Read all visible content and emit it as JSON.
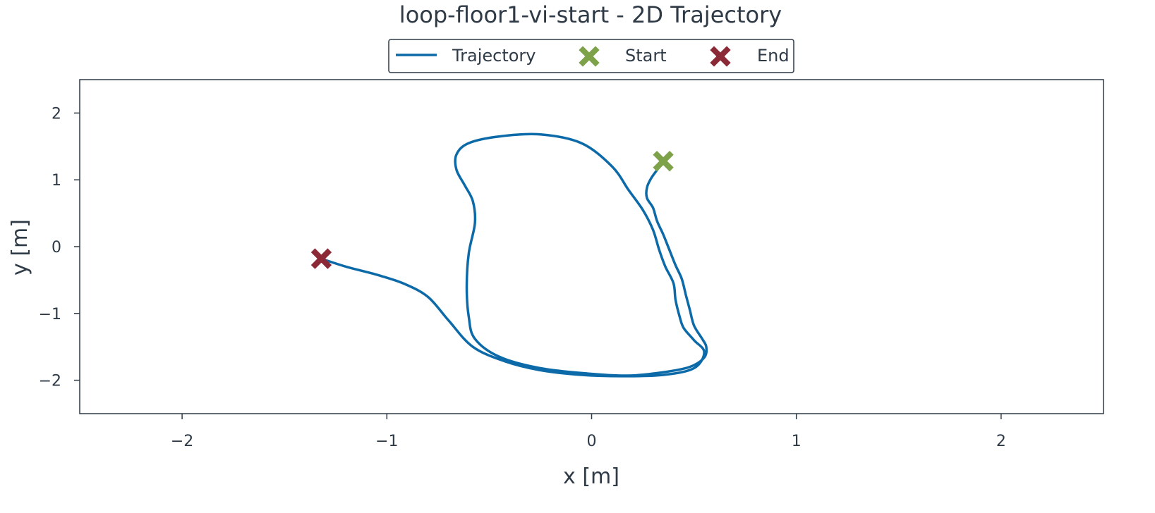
{
  "chart_data": {
    "type": "line",
    "title": "loop-floor1-vi-start - 2D Trajectory",
    "xlabel": "x [m]",
    "ylabel": "y [m]",
    "xlim": [
      -2.5,
      2.5
    ],
    "ylim": [
      -2.5,
      2.5
    ],
    "xticks": [
      -2,
      -1,
      0,
      1,
      2
    ],
    "yticks": [
      -2,
      -1,
      0,
      1,
      2
    ],
    "xtick_labels": [
      "−2",
      "−1",
      "0",
      "1",
      "2"
    ],
    "ytick_labels": [
      "−2",
      "−1",
      "0",
      "1",
      "2"
    ],
    "grid": false,
    "legend_placement": "top-center",
    "colors": {
      "trajectory": "#0d6aa8",
      "start": "#7ea24a",
      "end": "#8b2a36",
      "axes": "#2f3a47"
    },
    "series": [
      {
        "name": "Trajectory",
        "points": [
          [
            0.35,
            1.28
          ],
          [
            0.32,
            1.15
          ],
          [
            0.29,
            1.02
          ],
          [
            0.27,
            0.88
          ],
          [
            0.27,
            0.73
          ],
          [
            0.3,
            0.58
          ],
          [
            0.32,
            0.38
          ],
          [
            0.35,
            0.18
          ],
          [
            0.38,
            -0.05
          ],
          [
            0.41,
            -0.28
          ],
          [
            0.44,
            -0.48
          ],
          [
            0.46,
            -0.72
          ],
          [
            0.48,
            -0.95
          ],
          [
            0.5,
            -1.18
          ],
          [
            0.54,
            -1.38
          ],
          [
            0.56,
            -1.5
          ],
          [
            0.55,
            -1.66
          ],
          [
            0.48,
            -1.8
          ],
          [
            0.35,
            -1.88
          ],
          [
            0.18,
            -1.93
          ],
          [
            -0.02,
            -1.9
          ],
          [
            -0.25,
            -1.82
          ],
          [
            -0.45,
            -1.65
          ],
          [
            -0.57,
            -1.38
          ],
          [
            -0.6,
            -1.05
          ],
          [
            -0.61,
            -0.6
          ],
          [
            -0.6,
            -0.1
          ],
          [
            -0.57,
            0.35
          ],
          [
            -0.58,
            0.68
          ],
          [
            -0.62,
            0.92
          ],
          [
            -0.66,
            1.15
          ],
          [
            -0.66,
            1.38
          ],
          [
            -0.6,
            1.55
          ],
          [
            -0.45,
            1.65
          ],
          [
            -0.25,
            1.68
          ],
          [
            -0.05,
            1.55
          ],
          [
            0.1,
            1.2
          ],
          [
            0.18,
            0.85
          ],
          [
            0.25,
            0.55
          ],
          [
            0.3,
            0.25
          ],
          [
            0.33,
            -0.05
          ],
          [
            0.36,
            -0.3
          ],
          [
            0.4,
            -0.55
          ],
          [
            0.41,
            -0.8
          ],
          [
            0.43,
            -1.05
          ],
          [
            0.45,
            -1.22
          ],
          [
            0.5,
            -1.4
          ],
          [
            0.55,
            -1.58
          ],
          [
            0.5,
            -1.82
          ],
          [
            0.35,
            -1.92
          ],
          [
            0.15,
            -1.94
          ],
          [
            -0.05,
            -1.92
          ],
          [
            -0.25,
            -1.85
          ],
          [
            -0.42,
            -1.72
          ],
          [
            -0.58,
            -1.5
          ],
          [
            -0.7,
            -1.1
          ],
          [
            -0.8,
            -0.75
          ],
          [
            -0.92,
            -0.55
          ],
          [
            -1.05,
            -0.42
          ],
          [
            -1.2,
            -0.3
          ],
          [
            -1.32,
            -0.18
          ]
        ]
      }
    ],
    "markers": [
      {
        "name": "Start",
        "x": 0.35,
        "y": 1.28
      },
      {
        "name": "End",
        "x": -1.32,
        "y": -0.18
      }
    ]
  }
}
